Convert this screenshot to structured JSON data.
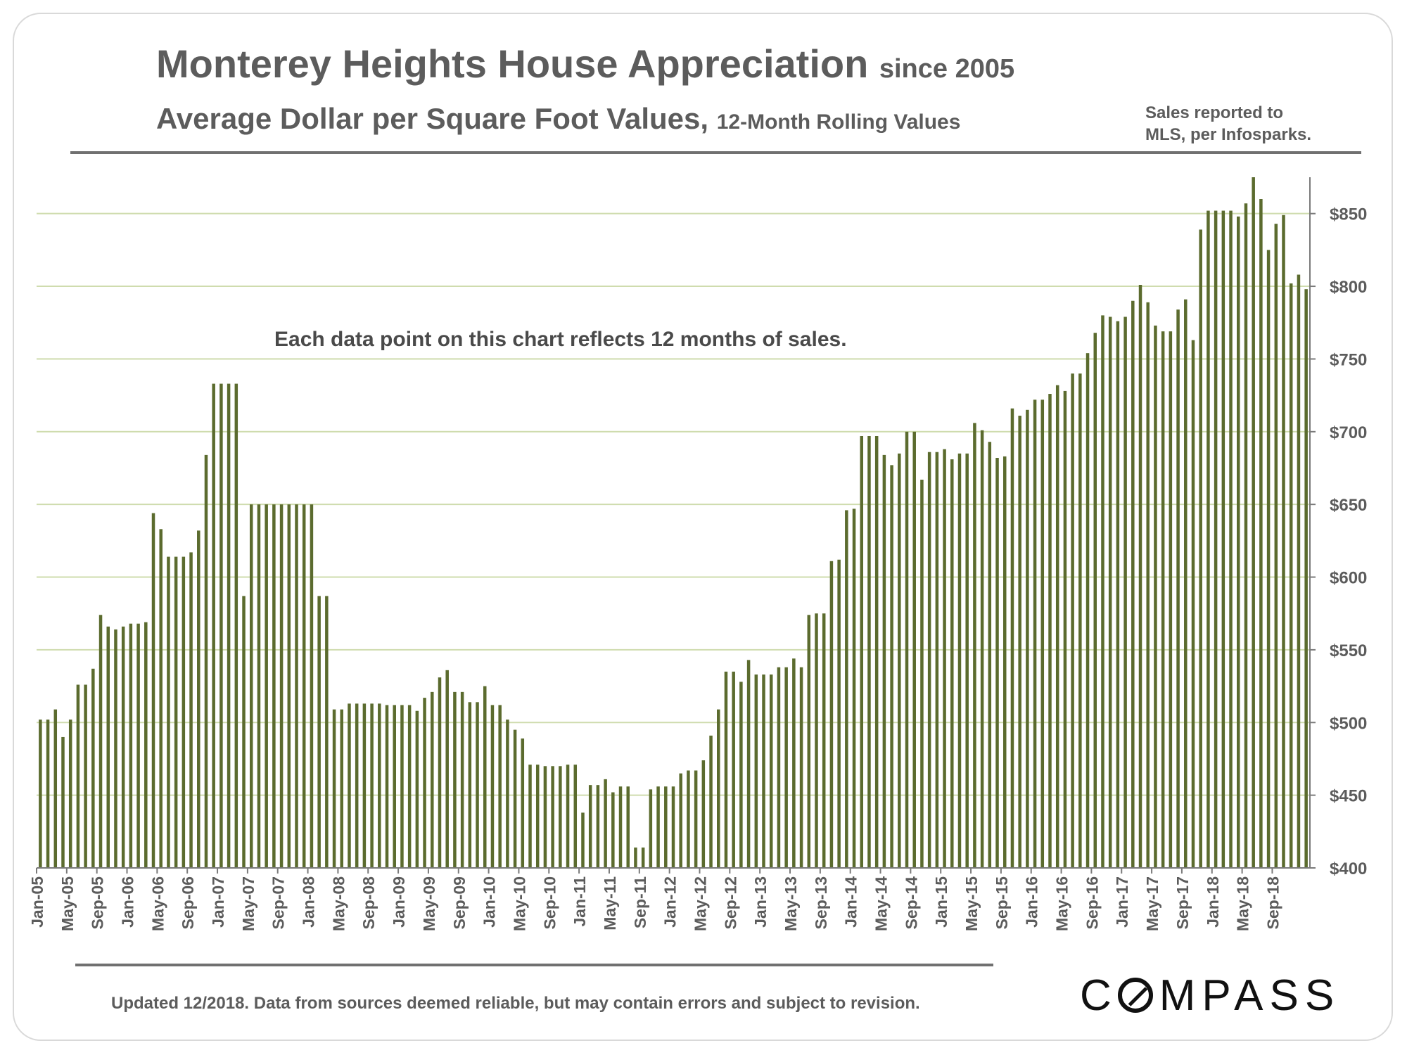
{
  "header": {
    "title_main": "Monterey Heights House Appreciation",
    "title_since": "since 2005",
    "subtitle_main": "Average Dollar per Square Foot Values,",
    "subtitle_small": "12-Month Rolling Values",
    "source_line1": "Sales reported to",
    "source_line2": "MLS, per Infosparks."
  },
  "note": "Each data point on this chart reflects 12 months of sales.",
  "footer": "Updated 12/2018. Data from sources deemed reliable, but may contain errors and subject to revision.",
  "brand": {
    "logo_pre": "C",
    "logo_post": "MPASS"
  },
  "colors": {
    "bar": "#5b6b2e",
    "grid": "#cfdcae",
    "axis": "#7a7a7a",
    "text": "#5c5c5c"
  },
  "chart_data": {
    "type": "bar",
    "title": "Monterey Heights House Appreciation since 2005",
    "subtitle": "Average Dollar per Square Foot Values, 12-Month Rolling Values",
    "xlabel": "",
    "ylabel": "",
    "y_axis_side": "right",
    "ylim": [
      400,
      875
    ],
    "yticks": [
      400,
      450,
      500,
      550,
      600,
      650,
      700,
      750,
      800,
      850
    ],
    "ytick_labels": [
      "$400",
      "$450",
      "$500",
      "$550",
      "$600",
      "$650",
      "$700",
      "$750",
      "$800",
      "$850"
    ],
    "grid": true,
    "xtick_labels": [
      "Jan-05",
      "May-05",
      "Sep-05",
      "Jan-06",
      "May-06",
      "Sep-06",
      "Jan-07",
      "May-07",
      "Sep-07",
      "Jan-08",
      "May-08",
      "Sep-08",
      "Jan-09",
      "May-09",
      "Sep-09",
      "Jan-10",
      "May-10",
      "Sep-10",
      "Jan-11",
      "May-11",
      "Sep-11",
      "Jan-12",
      "May-12",
      "Sep-12",
      "Jan-13",
      "May-13",
      "Sep-13",
      "Jan-14",
      "May-14",
      "Sep-14",
      "Jan-15",
      "May-15",
      "Sep-15",
      "Jan-16",
      "May-16",
      "Sep-16",
      "Jan-17",
      "May-17",
      "Sep-17",
      "Jan-18",
      "May-18",
      "Sep-18"
    ],
    "xtick_every_n_months": 4,
    "series": [
      {
        "name": "Average $/sq.ft.",
        "start": "Jan-05",
        "values": [
          502,
          502,
          509,
          490,
          502,
          526,
          526,
          537,
          574,
          566,
          564,
          566,
          568,
          568,
          569,
          644,
          633,
          614,
          614,
          614,
          617,
          632,
          684,
          733,
          733,
          733,
          733,
          587,
          650,
          650,
          650,
          650,
          650,
          650,
          650,
          650,
          650,
          587,
          587,
          509,
          509,
          513,
          513,
          513,
          513,
          513,
          512,
          512,
          512,
          512,
          508,
          517,
          521,
          531,
          536,
          521,
          521,
          514,
          514,
          525,
          512,
          512,
          502,
          495,
          489,
          471,
          471,
          470,
          470,
          470,
          471,
          471,
          438,
          457,
          457,
          461,
          452,
          456,
          456,
          414,
          414,
          454,
          456,
          456,
          456,
          465,
          467,
          467,
          474,
          491,
          509,
          535,
          535,
          528,
          543,
          533,
          533,
          533,
          538,
          538,
          544,
          538,
          574,
          575,
          575,
          611,
          612,
          646,
          647,
          697,
          697,
          697,
          684,
          677,
          685,
          700,
          700,
          667,
          686,
          686,
          688,
          681,
          685,
          685,
          706,
          701,
          693,
          682,
          683,
          716,
          711,
          715,
          722,
          722,
          726,
          732,
          728,
          740,
          740,
          754,
          768,
          780,
          779,
          776,
          779,
          790,
          801,
          789,
          773,
          769,
          769,
          784,
          791,
          763,
          839,
          852,
          852,
          852,
          852,
          848,
          857,
          875,
          860,
          825,
          843,
          849,
          802,
          808,
          798
        ]
      }
    ]
  }
}
